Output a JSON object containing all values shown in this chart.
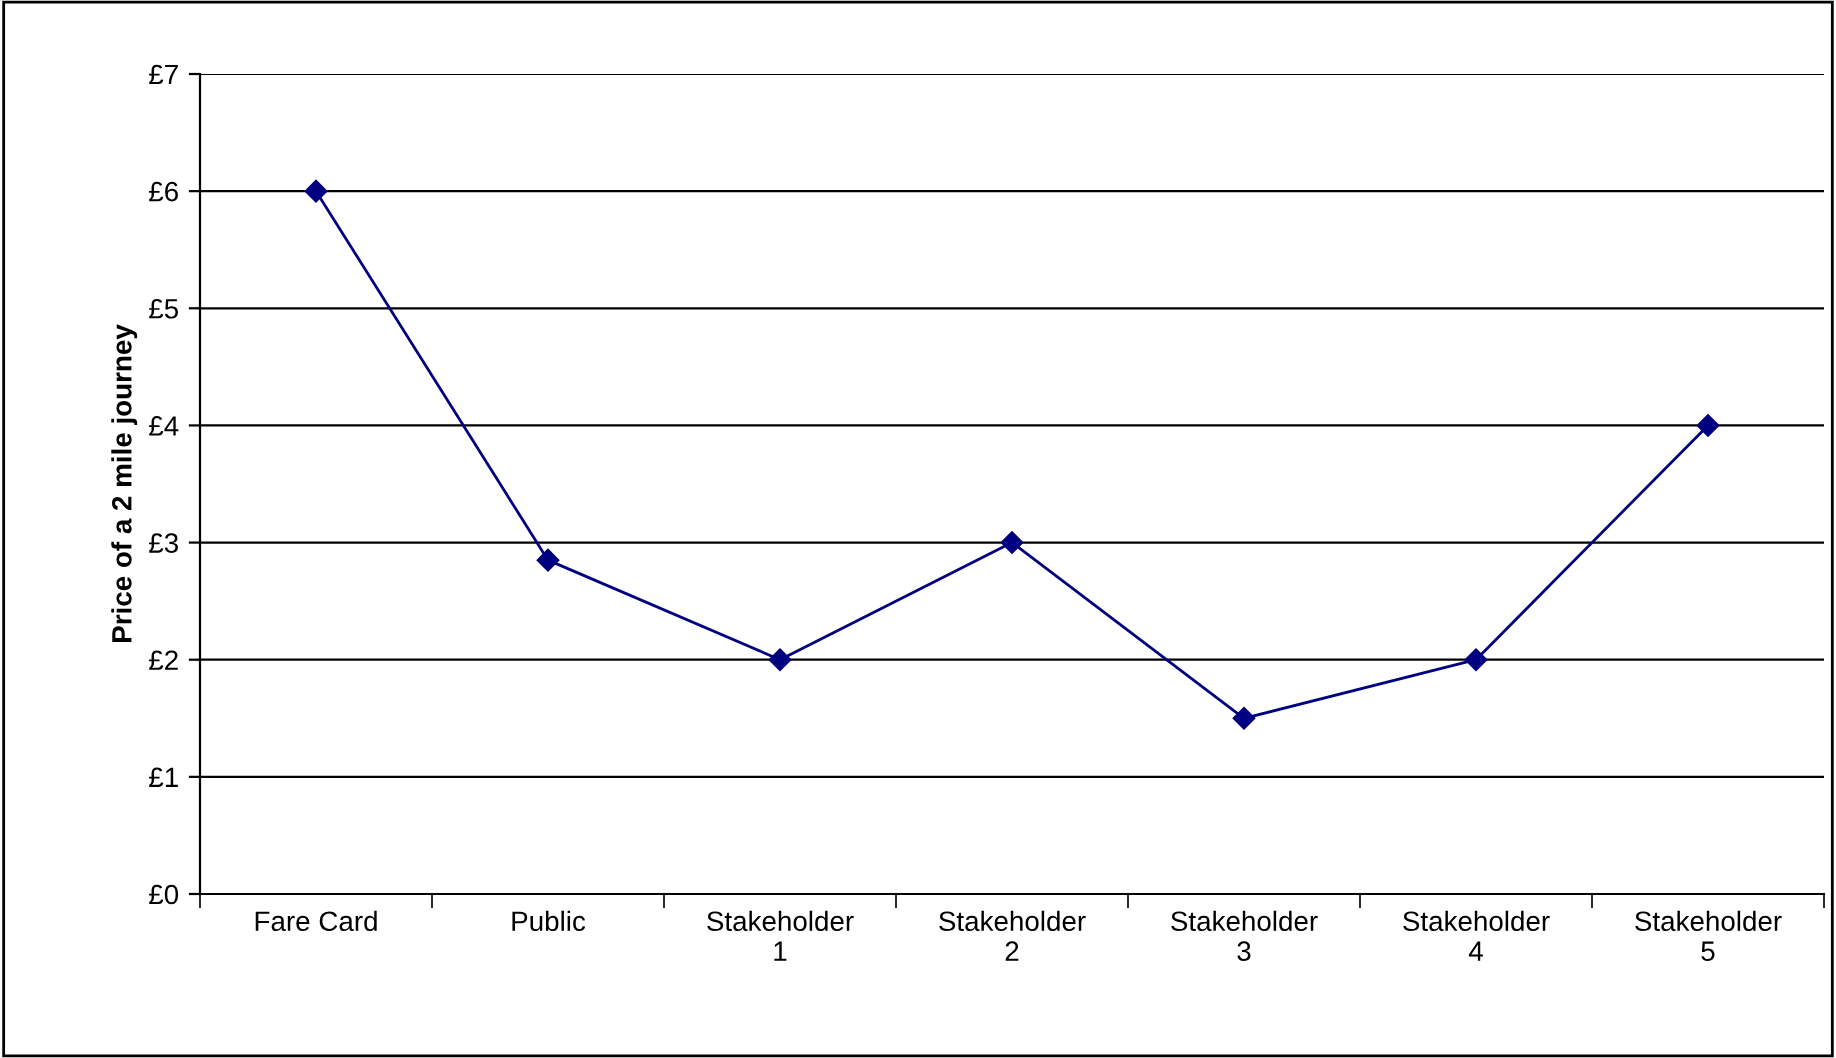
{
  "chart_data": {
    "type": "line",
    "ylabel": "Price of a 2 mile journey",
    "categories": [
      "Fare Card",
      "Public",
      "Stakeholder\n1",
      "Stakeholder\n2",
      "Stakeholder\n3",
      "Stakeholder\n4",
      "Stakeholder\n5"
    ],
    "series": [
      {
        "color": "#000080",
        "values": [
          6,
          2.85,
          2,
          3,
          1.5,
          2,
          4
        ]
      }
    ],
    "ylim": [
      0,
      7
    ],
    "yticks": [
      {
        "value": 0,
        "label": "£0"
      },
      {
        "value": 1,
        "label": "£1"
      },
      {
        "value": 2,
        "label": "£2"
      },
      {
        "value": 3,
        "label": "£3"
      },
      {
        "value": 4,
        "label": "£4"
      },
      {
        "value": 5,
        "label": "£5"
      },
      {
        "value": 6,
        "label": "£6"
      },
      {
        "value": 7,
        "label": "£7"
      }
    ],
    "grid": "y",
    "marker": "diamond",
    "line_style": "solid",
    "legend": false
  }
}
